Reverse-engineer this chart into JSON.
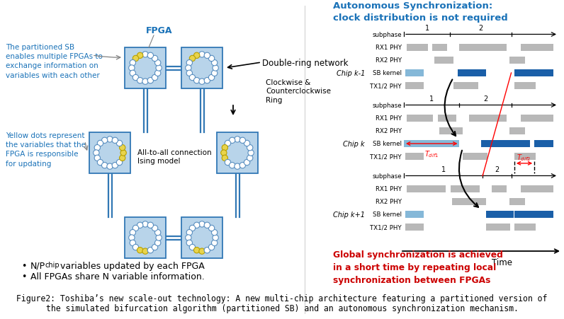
{
  "bg_color": "#ffffff",
  "title_color": "#1a72b8",
  "fpga_box_color": "#b8d4ea",
  "fpga_box_edge": "#3278b5",
  "circle_fill": "#ffffff",
  "circle_edge": "#5a8fc0",
  "yellow_fill": "#e8d44d",
  "yellow_edge": "#b8a000",
  "connector_color": "#3278b5",
  "annotation_color": "#1a72b8",
  "red_color": "#cc0000",
  "gray_bar": "#b8b8b8",
  "light_blue_bar": "#85b8d8",
  "dark_blue_bar": "#1a5fa8",
  "sync_title": "Autonomous Synchronization:\nclock distribution is not required",
  "global_sync_text": "Global synchronization is achieved\nin a short time by repeating local\nsynchronization between FPGAs",
  "fpga_label": "FPGA",
  "double_ring_label": "Double-ring network",
  "cw_ccw_label": "Clockwise &\nCounterclockwise\nRing",
  "all_to_all_label": "All-to-all connection\nIsing model",
  "bullet2": "All FPGAs share N variable information.",
  "fig_caption_line1": "Figure2: Toshiba’s new scale-out technology: A new multi-chip architecture featuring a partitioned version of",
  "fig_caption_line2": "the simulated bifurcation algorithm (partitioned SB) and an autonomous synchronization mechanism.",
  "left_label1": "The partitioned SB\nenables multiple FPGAs to\nexchange information on\nvariables with each other",
  "left_label2": "Yellow dots represent\nthe variables that the\nFPGA is responsible\nfor updating"
}
